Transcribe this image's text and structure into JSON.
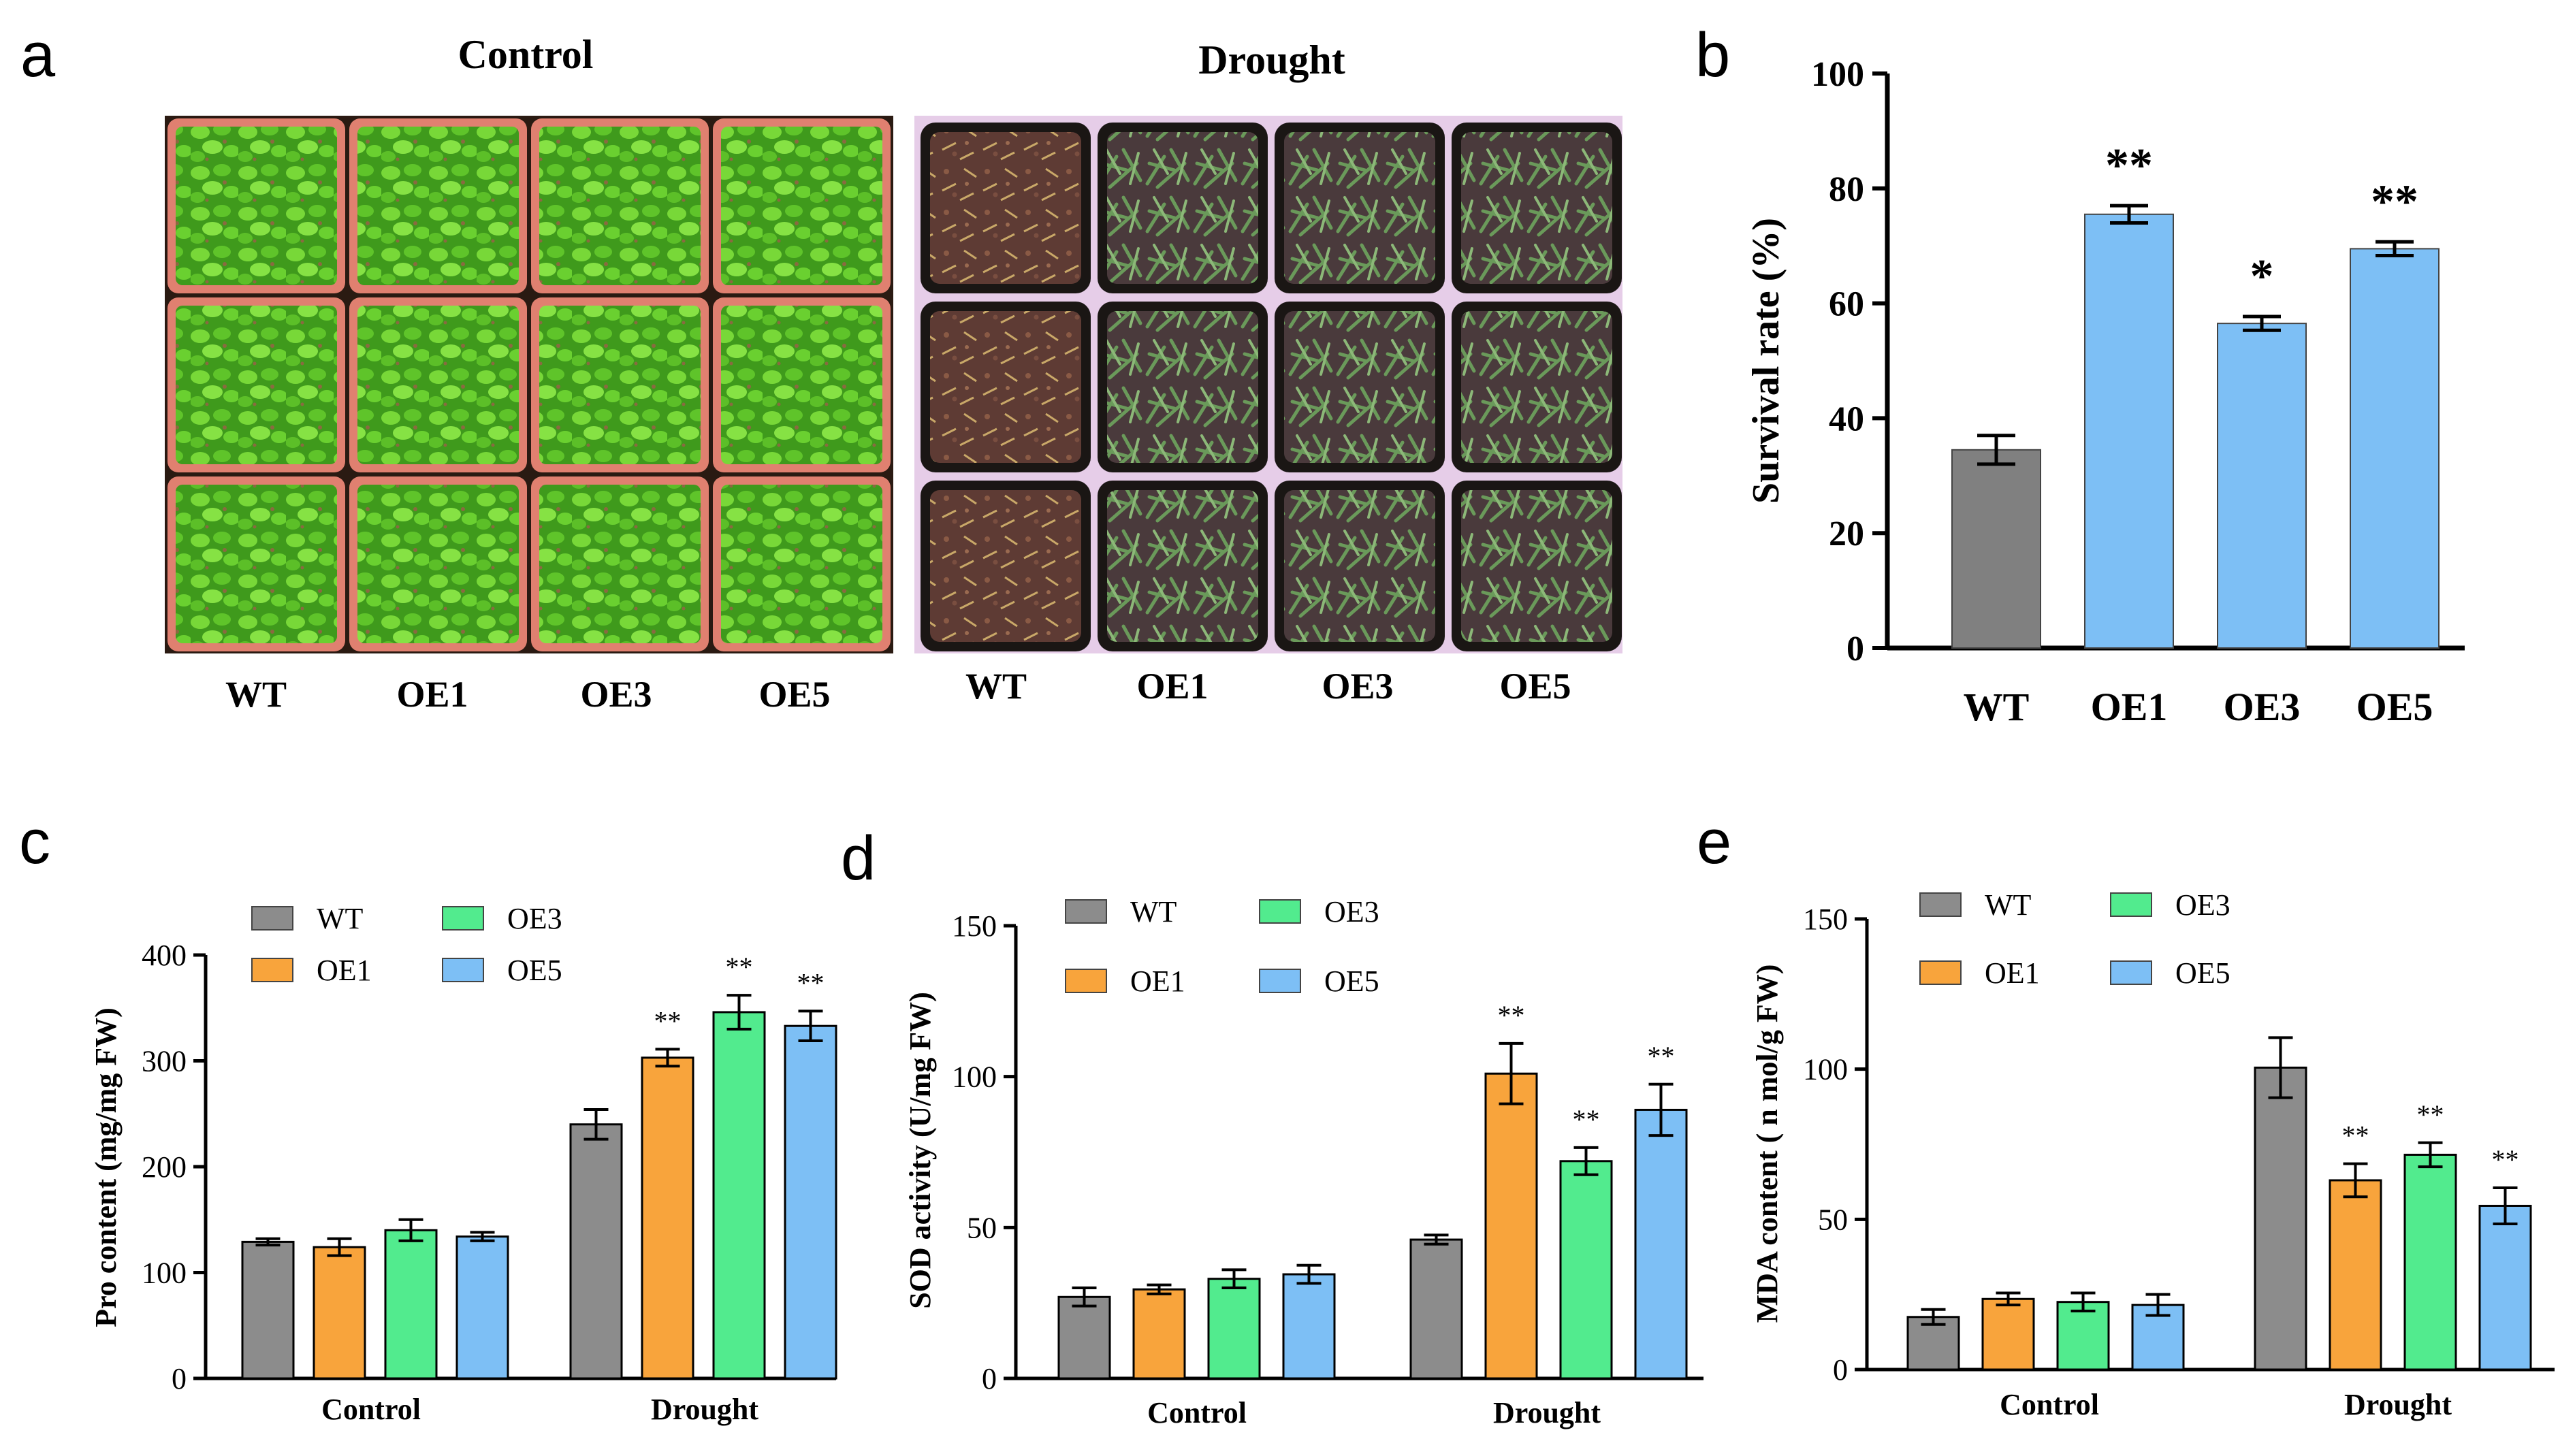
{
  "panel_a": {
    "label": "a",
    "control_title": "Control",
    "drought_title": "Drought",
    "genotypes": [
      "WT",
      "OE1",
      "OE3",
      "OE5"
    ]
  },
  "colors": {
    "WT": "#8c8c8c",
    "OE1": "#f8a43c",
    "OE3": "#52eb8e",
    "OE5": "#7dbff5",
    "error": "#000000"
  },
  "chart_data": [
    {
      "id": "b",
      "panel_label": "b",
      "type": "bar",
      "categories": [
        "WT",
        "OE1",
        "OE3",
        "OE5"
      ],
      "values": [
        34.5,
        75.5,
        56.5,
        69.5
      ],
      "errors": [
        2.5,
        1.5,
        1.2,
        1.2
      ],
      "significance": [
        "",
        "**",
        "*",
        "**"
      ],
      "bar_colors": [
        "#808080",
        "#7dbff5",
        "#7dbff5",
        "#7dbff5"
      ],
      "xlabel": "",
      "ylabel": "Survival rate (%)",
      "ylim": [
        0,
        100
      ],
      "yticks": [
        0,
        20,
        40,
        60,
        80,
        100
      ]
    },
    {
      "id": "c",
      "panel_label": "c",
      "type": "bar",
      "categories": [
        "Control",
        "Drought"
      ],
      "series": [
        {
          "name": "WT",
          "values": [
            129,
            240
          ],
          "errors": [
            3,
            14
          ],
          "significance": [
            "",
            ""
          ]
        },
        {
          "name": "OE1",
          "values": [
            124,
            303
          ],
          "errors": [
            8,
            8
          ],
          "significance": [
            "",
            "**"
          ]
        },
        {
          "name": "OE3",
          "values": [
            140,
            346
          ],
          "errors": [
            10,
            16
          ],
          "significance": [
            "",
            "**"
          ]
        },
        {
          "name": "OE5",
          "values": [
            134,
            333
          ],
          "errors": [
            4,
            14
          ],
          "significance": [
            "",
            "**"
          ]
        }
      ],
      "ylabel": "Pro content (mg/mg FW)",
      "ylim": [
        0,
        400
      ],
      "yticks": [
        0,
        100,
        200,
        300,
        400
      ]
    },
    {
      "id": "d",
      "panel_label": "d",
      "type": "bar",
      "categories": [
        "Control",
        "Drought"
      ],
      "series": [
        {
          "name": "WT",
          "values": [
            27,
            46
          ],
          "errors": [
            3,
            1.5
          ],
          "significance": [
            "",
            ""
          ]
        },
        {
          "name": "OE1",
          "values": [
            29.5,
            101
          ],
          "errors": [
            1.5,
            10
          ],
          "significance": [
            "",
            "**"
          ]
        },
        {
          "name": "OE3",
          "values": [
            33,
            72
          ],
          "errors": [
            3,
            4.5
          ],
          "significance": [
            "",
            "**"
          ]
        },
        {
          "name": "OE5",
          "values": [
            34.5,
            89
          ],
          "errors": [
            3,
            8.5
          ],
          "significance": [
            "",
            "**"
          ]
        }
      ],
      "ylabel": "SOD activity (U/mg FW)",
      "ylim": [
        0,
        150
      ],
      "yticks": [
        0,
        50,
        100,
        150
      ]
    },
    {
      "id": "e",
      "panel_label": "e",
      "type": "bar",
      "categories": [
        "Control",
        "Drought"
      ],
      "series": [
        {
          "name": "WT",
          "values": [
            17.5,
            100.5
          ],
          "errors": [
            2.5,
            10
          ],
          "significance": [
            "",
            ""
          ]
        },
        {
          "name": "OE1",
          "values": [
            23.5,
            63
          ],
          "errors": [
            2,
            5.5
          ],
          "significance": [
            "",
            "**"
          ]
        },
        {
          "name": "OE3",
          "values": [
            22.5,
            71.5
          ],
          "errors": [
            3,
            4
          ],
          "significance": [
            "",
            "**"
          ]
        },
        {
          "name": "OE5",
          "values": [
            21.5,
            54.5
          ],
          "errors": [
            3.5,
            6
          ],
          "significance": [
            "",
            "**"
          ]
        }
      ],
      "ylabel": "MDA content ( n mol/g FW)",
      "ylim": [
        0,
        150
      ],
      "yticks": [
        0,
        50,
        100,
        150
      ]
    }
  ]
}
